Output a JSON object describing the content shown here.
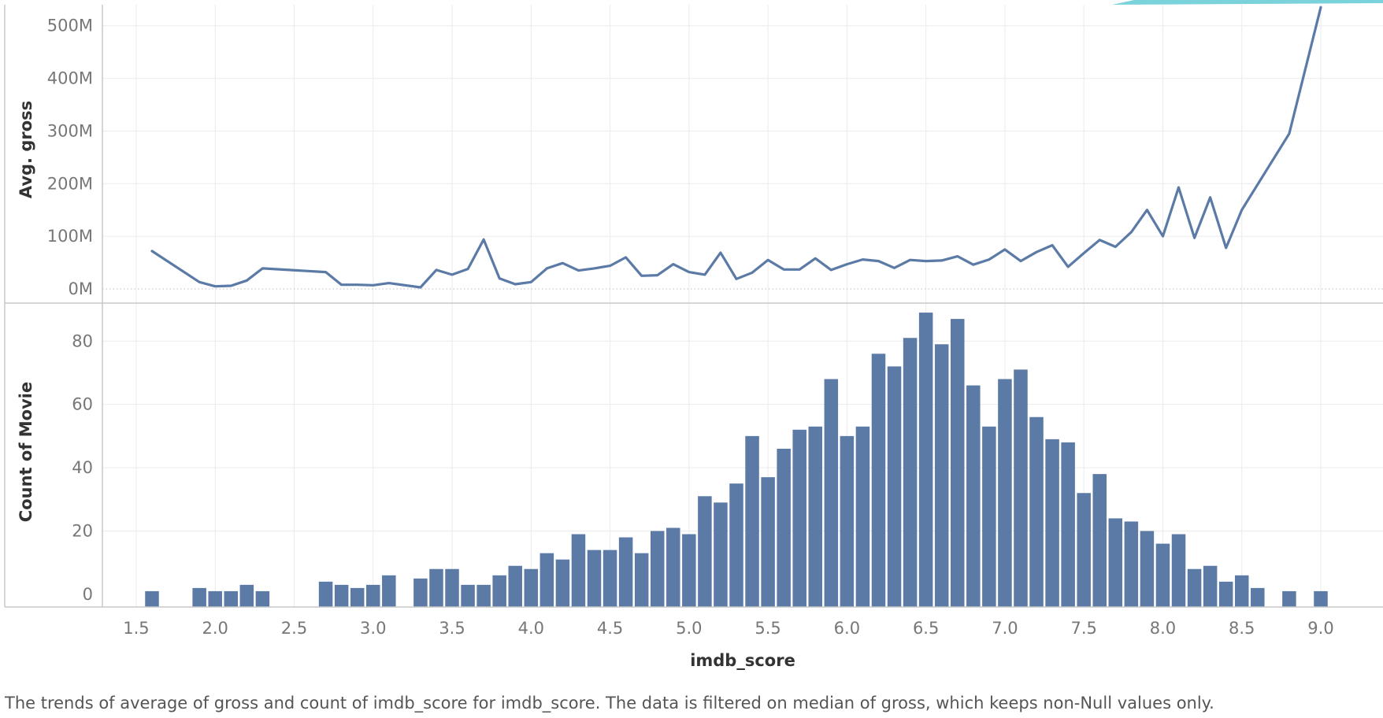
{
  "colors": {
    "mark": "#5b7aa6",
    "grid": "#ebebeb",
    "axis": "#c8c8c8",
    "text": "#777777",
    "title": "#333333"
  },
  "caption": "The trends of average of gross and count of imdb_score for imdb_score. The data is filtered on median of gross, which keeps non-Null values only.",
  "chart_data": [
    {
      "type": "line",
      "title": "",
      "xlabel": "imdb_score",
      "ylabel": "Avg. gross",
      "ylim": [
        0,
        540
      ],
      "y_ticks": [
        0,
        100,
        200,
        300,
        400,
        500
      ],
      "y_tick_labels": [
        "0M",
        "100M",
        "200M",
        "300M",
        "400M",
        "500M"
      ],
      "unit": "M",
      "series": [
        {
          "name": "Avg. gross",
          "x": [
            1.6,
            1.9,
            2.0,
            2.1,
            2.2,
            2.3,
            2.7,
            2.8,
            2.9,
            3.0,
            3.1,
            3.3,
            3.4,
            3.5,
            3.6,
            3.7,
            3.8,
            3.9,
            4.0,
            4.1,
            4.2,
            4.3,
            4.4,
            4.5,
            4.6,
            4.7,
            4.8,
            4.9,
            5.0,
            5.1,
            5.2,
            5.3,
            5.4,
            5.5,
            5.6,
            5.7,
            5.8,
            5.9,
            6.0,
            6.1,
            6.2,
            6.3,
            6.4,
            6.5,
            6.6,
            6.7,
            6.8,
            6.9,
            7.0,
            7.1,
            7.2,
            7.3,
            7.4,
            7.5,
            7.6,
            7.7,
            7.8,
            7.9,
            8.0,
            8.1,
            8.2,
            8.3,
            8.4,
            8.5,
            8.8,
            9.0
          ],
          "values": [
            72,
            13,
            5,
            6,
            16,
            39,
            32,
            8,
            8,
            7,
            11,
            3,
            36,
            27,
            38,
            94,
            20,
            9,
            13,
            39,
            49,
            35,
            39,
            44,
            60,
            25,
            26,
            47,
            32,
            27,
            69,
            19,
            31,
            55,
            37,
            37,
            58,
            36,
            47,
            56,
            53,
            40,
            55,
            53,
            54,
            62,
            46,
            56,
            75,
            53,
            70,
            83,
            42,
            68,
            93,
            80,
            108,
            150,
            100,
            193,
            97,
            174,
            78,
            150,
            295,
            535
          ]
        }
      ]
    },
    {
      "type": "bar",
      "title": "",
      "xlabel": "imdb_score",
      "ylabel": "Count of Movie",
      "ylim": [
        -4,
        92
      ],
      "y_ticks": [
        0,
        20,
        40,
        60,
        80
      ],
      "x_ticks": [
        1.5,
        2.0,
        2.5,
        3.0,
        3.5,
        4.0,
        4.5,
        5.0,
        5.5,
        6.0,
        6.5,
        7.0,
        7.5,
        8.0,
        8.5,
        9.0
      ],
      "x_tick_labels": [
        "1.5",
        "2.0",
        "2.5",
        "3.0",
        "3.5",
        "4.0",
        "4.5",
        "5.0",
        "5.5",
        "6.0",
        "6.5",
        "7.0",
        "7.5",
        "8.0",
        "8.5",
        "9.0"
      ],
      "xlim": [
        1.14,
        9.4
      ],
      "series": [
        {
          "name": "Count of Movie",
          "x": [
            1.6,
            1.9,
            2.0,
            2.1,
            2.2,
            2.3,
            2.7,
            2.8,
            2.9,
            3.0,
            3.1,
            3.3,
            3.4,
            3.5,
            3.6,
            3.7,
            3.8,
            3.9,
            4.0,
            4.1,
            4.2,
            4.3,
            4.4,
            4.5,
            4.6,
            4.7,
            4.8,
            4.9,
            5.0,
            5.1,
            5.2,
            5.3,
            5.4,
            5.5,
            5.6,
            5.7,
            5.8,
            5.9,
            6.0,
            6.1,
            6.2,
            6.3,
            6.4,
            6.5,
            6.6,
            6.7,
            6.8,
            6.9,
            7.0,
            7.1,
            7.2,
            7.3,
            7.4,
            7.5,
            7.6,
            7.7,
            7.8,
            7.9,
            8.0,
            8.1,
            8.2,
            8.3,
            8.4,
            8.5,
            8.6,
            8.8,
            9.0
          ],
          "values": [
            1,
            2,
            1,
            1,
            3,
            1,
            4,
            3,
            2,
            3,
            6,
            5,
            8,
            8,
            3,
            3,
            6,
            9,
            8,
            13,
            11,
            19,
            14,
            14,
            18,
            13,
            20,
            21,
            19,
            31,
            29,
            35,
            50,
            37,
            46,
            52,
            53,
            68,
            50,
            53,
            76,
            72,
            81,
            89,
            79,
            87,
            66,
            53,
            68,
            71,
            56,
            49,
            48,
            32,
            38,
            24,
            23,
            20,
            16,
            19,
            8,
            9,
            4,
            6,
            2,
            1,
            1
          ]
        }
      ]
    }
  ]
}
